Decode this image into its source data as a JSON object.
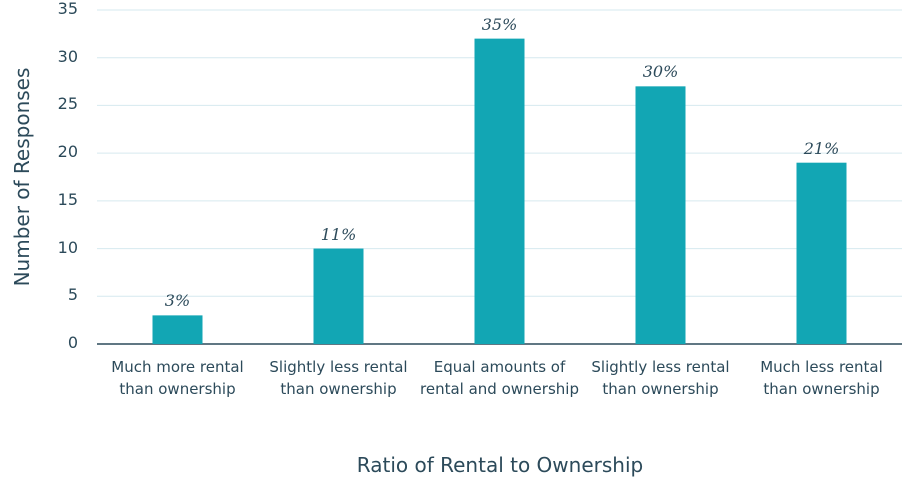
{
  "chart_data": {
    "type": "bar",
    "xlabel": "Ratio of Rental to Ownership",
    "ylabel": "Number of Responses",
    "categories": [
      "Much more rental than ownership",
      "Slightly less rental than ownership",
      "Equal amounts of rental and ownership",
      "Slightly less rental than ownership",
      "Much less rental than ownership"
    ],
    "values": [
      3,
      10,
      32,
      27,
      19
    ],
    "value_labels": [
      "3%",
      "11%",
      "35%",
      "30%",
      "21%"
    ],
    "color": "#12a6b4",
    "ylim": [
      0,
      35
    ],
    "yticks": [
      0,
      5,
      10,
      15,
      20,
      25,
      30,
      35
    ],
    "grid": true
  }
}
